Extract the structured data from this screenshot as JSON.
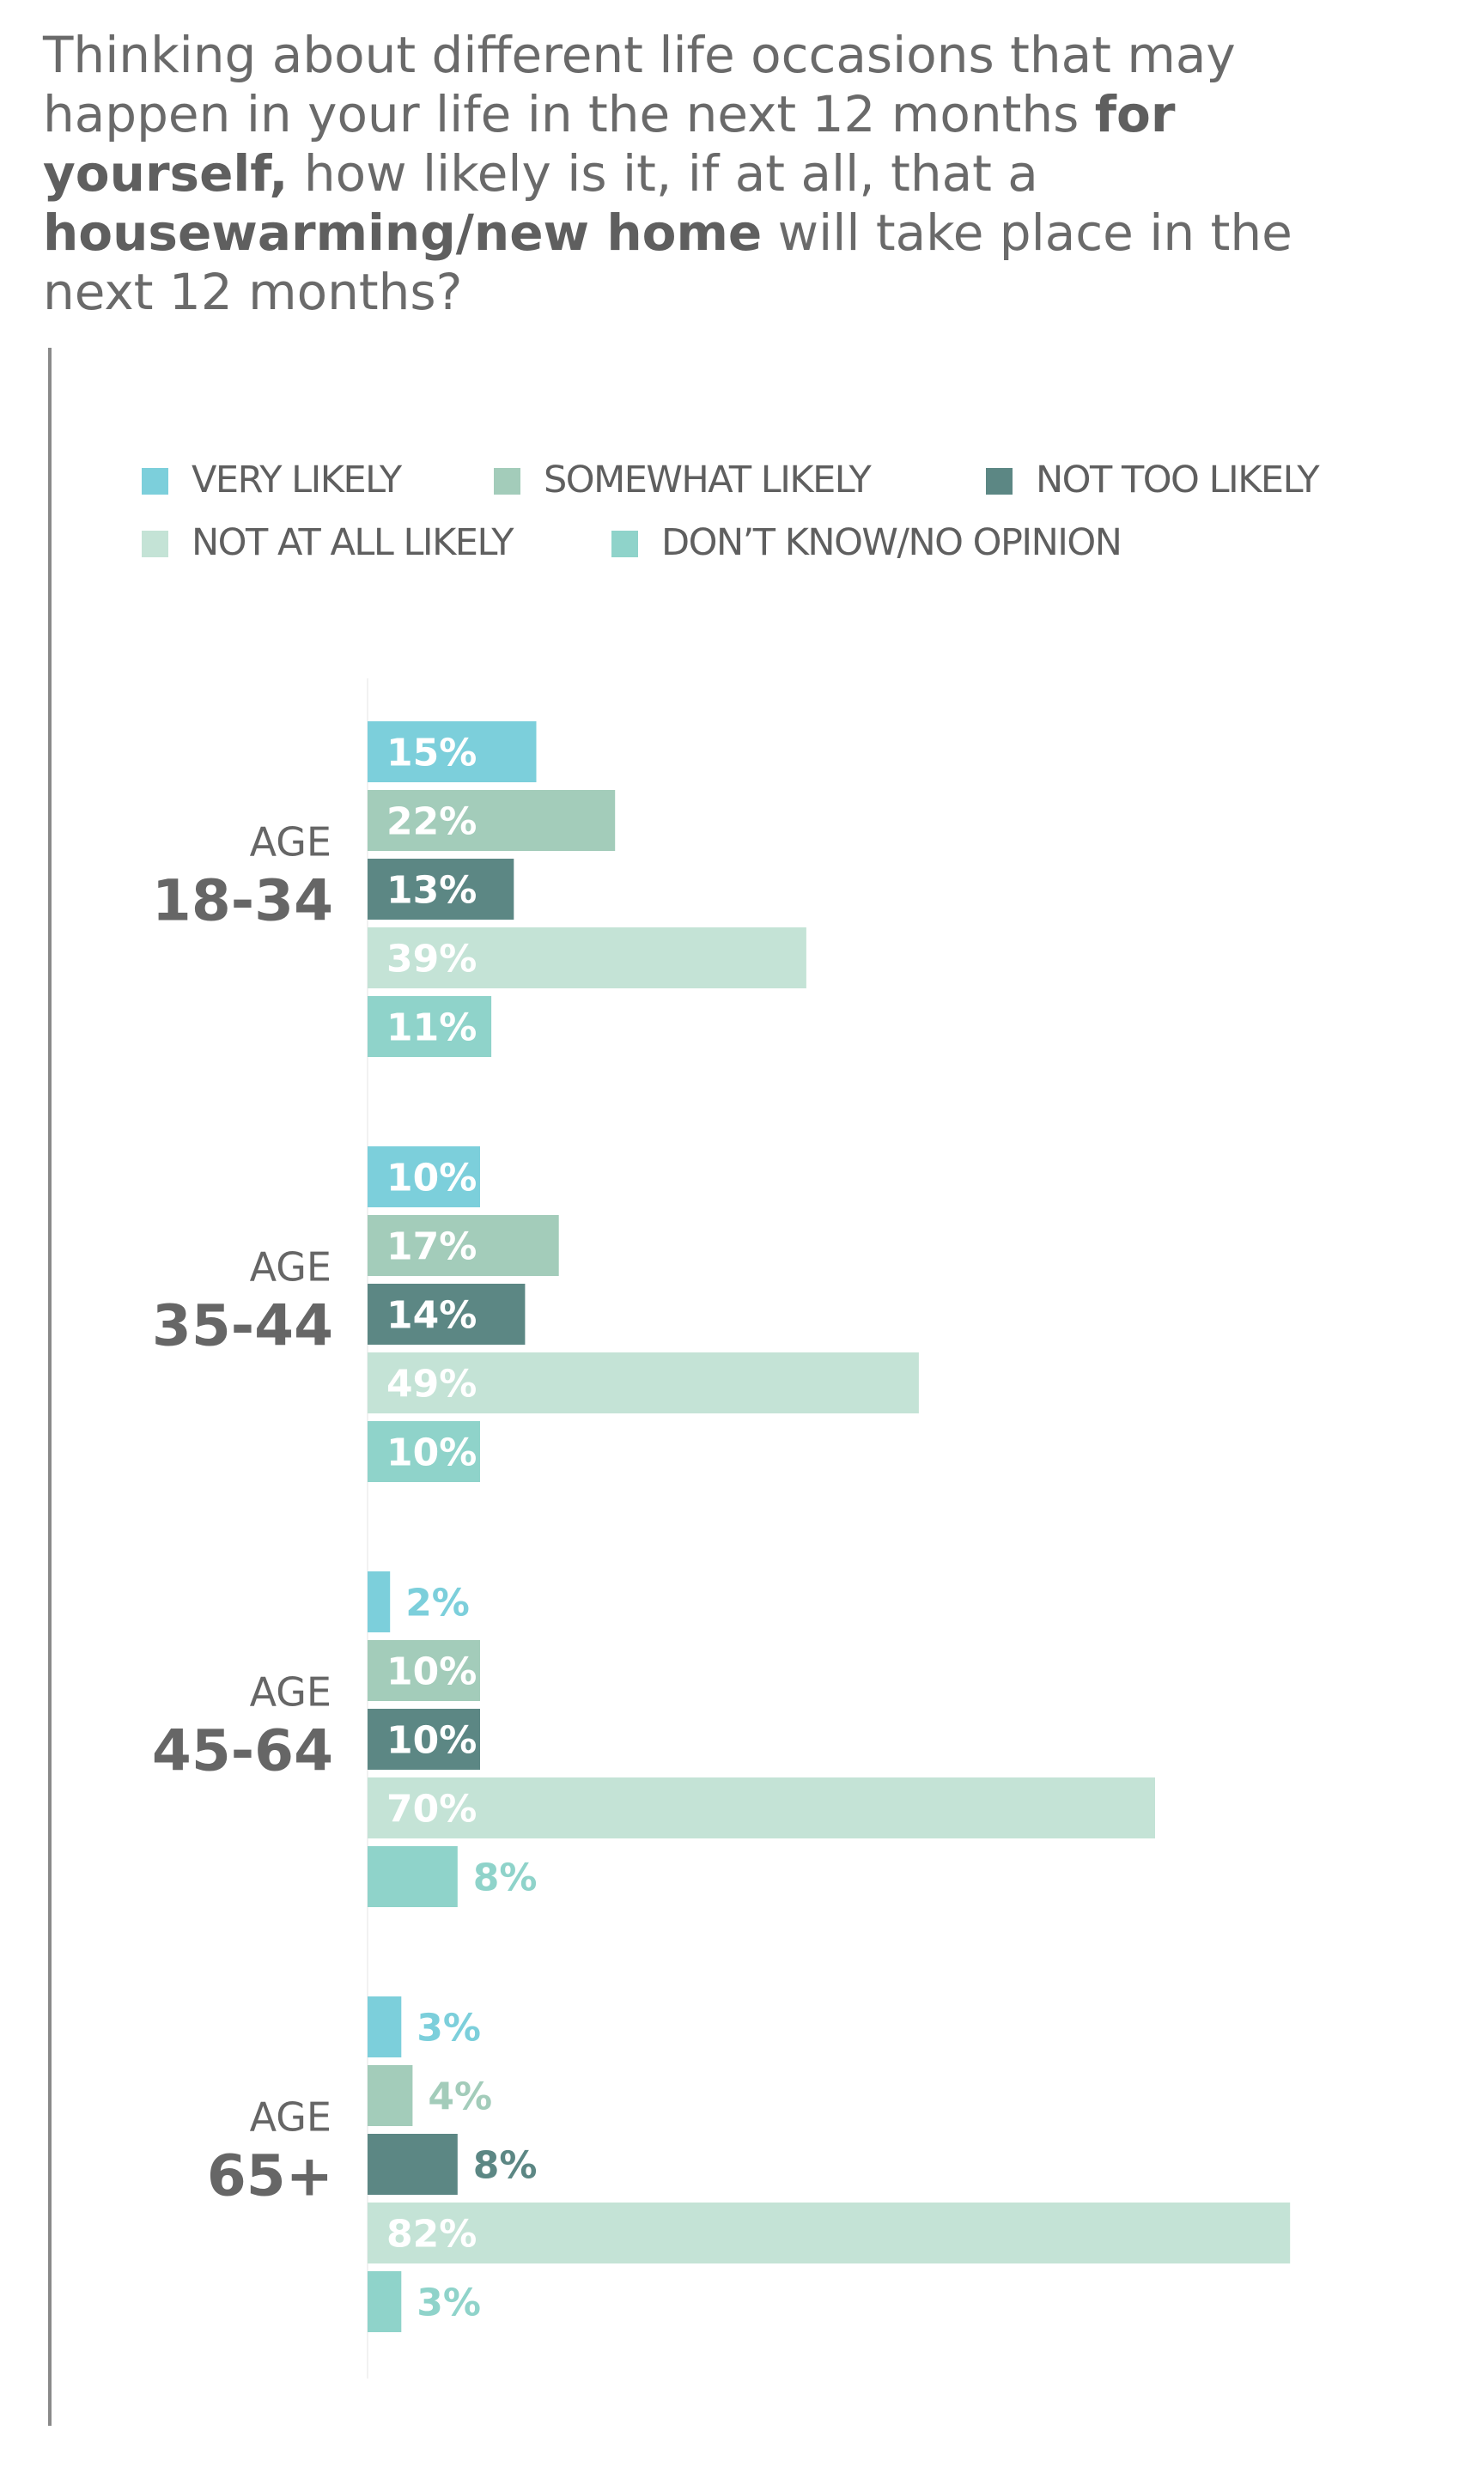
{
  "question": {
    "part1": "Thinking about different life occasions that may happen in your life in the next 12 months ",
    "bold1": "for yourself,",
    "part2": " how likely is it, if at all, that a ",
    "bold2": "housewarming/new home",
    "part3": " will take place in the next 12 months?"
  },
  "colors": {
    "very_likely": "#7ccfdb",
    "somewhat_likely": "#a3ccba",
    "not_too_likely": "#5c8784",
    "not_at_all_likely": "#c4e3d6",
    "dont_know": "#8fd3ca",
    "group_label": "#666666"
  },
  "chart_data": {
    "type": "bar",
    "orientation": "horizontal",
    "title": "",
    "xlabel": "",
    "ylabel": "",
    "xlim": [
      0,
      100
    ],
    "grid": false,
    "legend_position": "top",
    "value_suffix": "%",
    "categories": [
      {
        "prefix": "AGE",
        "label": "18-34"
      },
      {
        "prefix": "AGE",
        "label": "35-44"
      },
      {
        "prefix": "AGE",
        "label": "45-64"
      },
      {
        "prefix": "AGE",
        "label": "65+"
      }
    ],
    "series": [
      {
        "name": "VERY LIKELY",
        "color_key": "very_likely",
        "values": [
          15,
          10,
          2,
          3
        ]
      },
      {
        "name": "SOMEWHAT LIKELY",
        "color_key": "somewhat_likely",
        "values": [
          22,
          17,
          10,
          4
        ]
      },
      {
        "name": "NOT TOO LIKELY",
        "color_key": "not_too_likely",
        "values": [
          13,
          14,
          10,
          8
        ]
      },
      {
        "name": "NOT AT ALL LIKELY",
        "color_key": "not_at_all_likely",
        "values": [
          39,
          49,
          70,
          82
        ]
      },
      {
        "name": "DON’T KNOW/NO OPINION",
        "color_key": "dont_know",
        "values": [
          11,
          10,
          8,
          3
        ]
      }
    ]
  }
}
